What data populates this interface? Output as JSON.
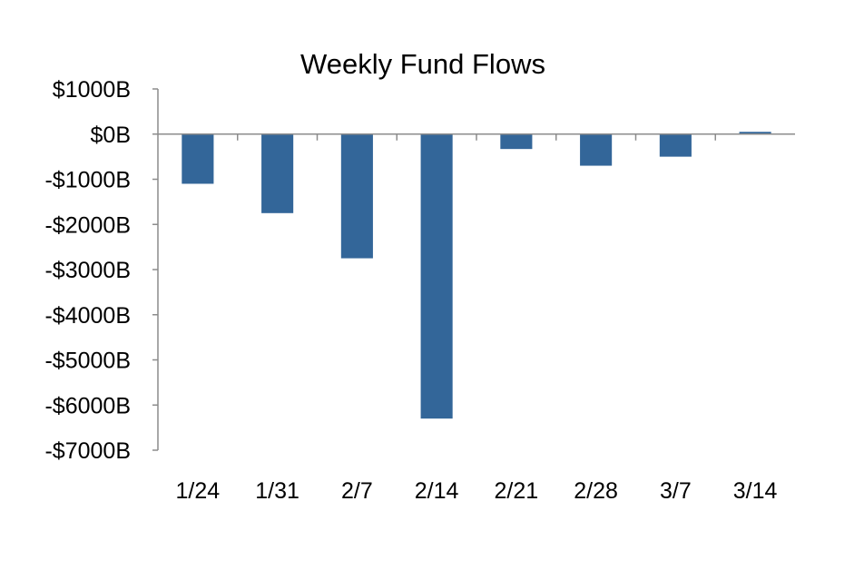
{
  "chart_data": {
    "type": "bar",
    "title": "Weekly Fund Flows",
    "xlabel": "",
    "ylabel": "",
    "categories": [
      "1/24",
      "1/31",
      "2/7",
      "2/14",
      "2/21",
      "2/28",
      "3/7",
      "3/14"
    ],
    "values": [
      -1100,
      -1750,
      -2750,
      -6300,
      -330,
      -700,
      -500,
      50
    ],
    "ylim": [
      -7000,
      1000
    ],
    "yticks": [
      1000,
      0,
      -1000,
      -2000,
      -3000,
      -4000,
      -5000,
      -6000,
      -7000
    ],
    "ytick_labels": [
      "$1000B",
      "$0B",
      "-$1000B",
      "-$2000B",
      "-$3000B",
      "-$4000B",
      "-$5000B",
      "-$6000B",
      "-$7000B"
    ],
    "bar_color": "#336699",
    "axis_color": "#8c8c8c",
    "grid": false,
    "legend": "none"
  }
}
